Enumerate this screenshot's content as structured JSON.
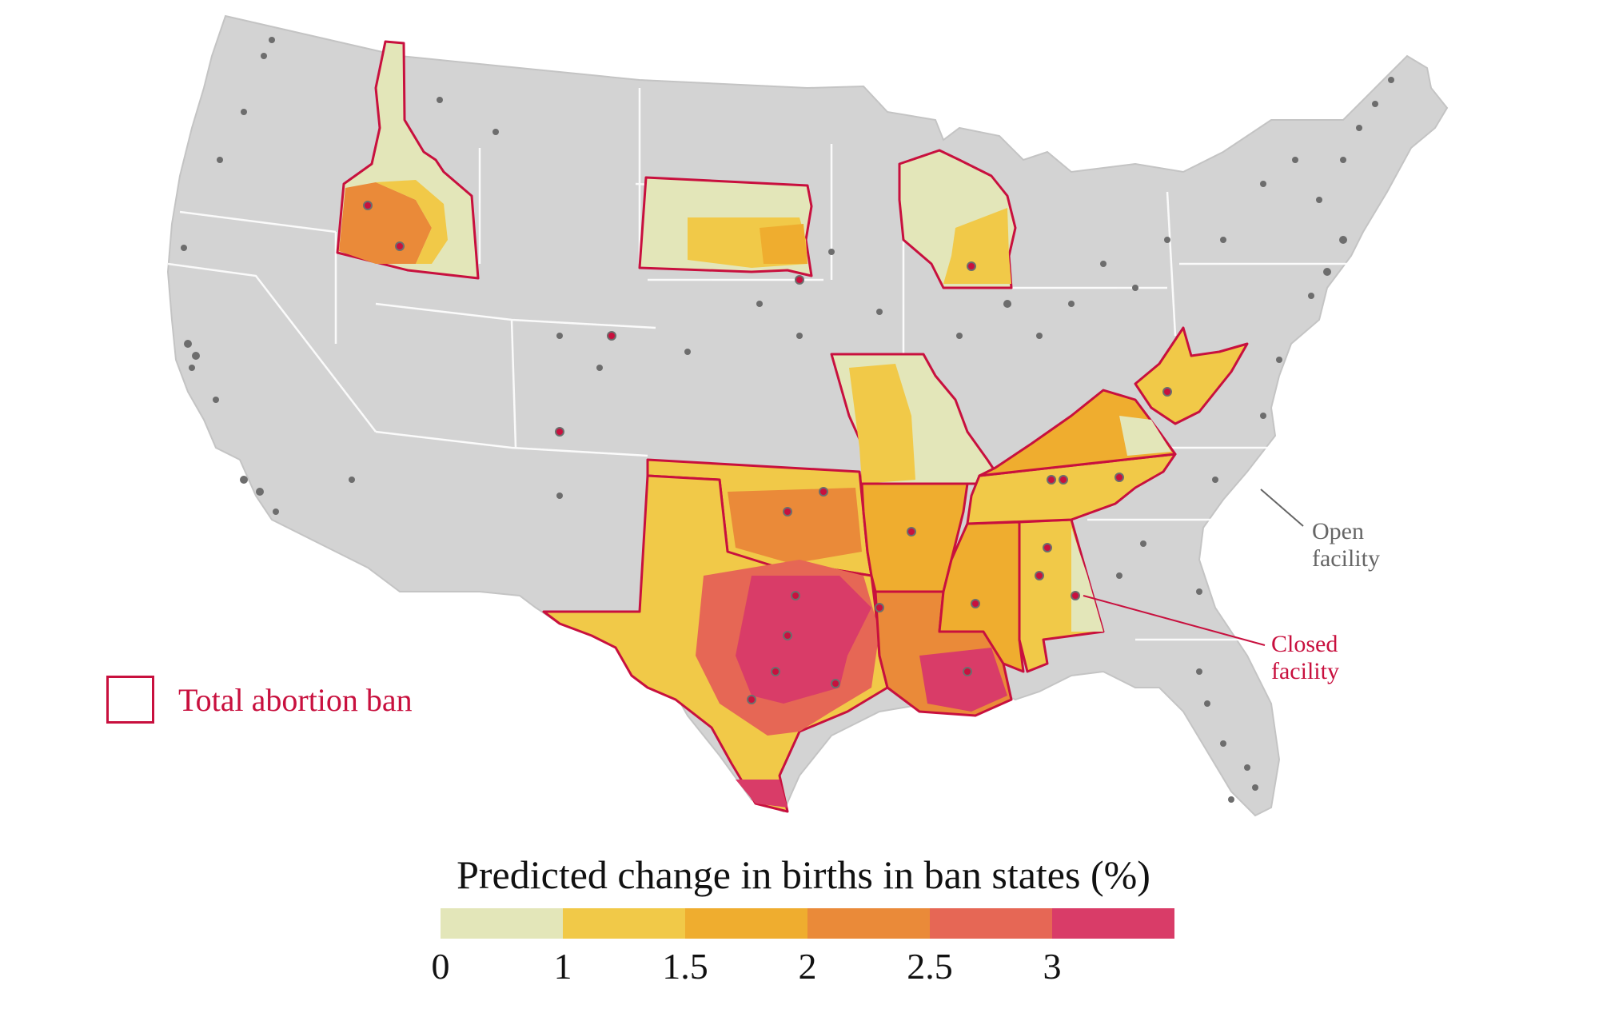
{
  "legend": {
    "ban_label": "Total abortion ban",
    "ban_color": "#c8103e"
  },
  "annotations": {
    "open_facility": [
      "Open",
      "facility"
    ],
    "closed_facility": [
      "Closed",
      "facility"
    ],
    "open_color": "#666666",
    "closed_color": "#c8103e"
  },
  "color_scale": {
    "title": "Predicted change in births in ban states (%)",
    "ticks": [
      "0",
      "1",
      "1.5",
      "2",
      "2.5",
      "3"
    ],
    "bins": [
      {
        "from": 0,
        "to": 1,
        "color": "#e3e6b9"
      },
      {
        "from": 1,
        "to": 1.5,
        "color": "#f1c948"
      },
      {
        "from": 1.5,
        "to": 2,
        "color": "#efad2f"
      },
      {
        "from": 2,
        "to": 2.5,
        "color": "#ea8a39"
      },
      {
        "from": 2.5,
        "to": 3,
        "color": "#e66755"
      },
      {
        "from": 3,
        "to": null,
        "color": "#d93c68"
      }
    ]
  },
  "map": {
    "base_color": "#d3d3d3",
    "border_color": "#ffffff",
    "open_facility_color": "#6d6d6d",
    "closed_facility_color": "#c8103e",
    "ban_states": [
      "Idaho",
      "South Dakota",
      "Wisconsin",
      "Missouri",
      "Oklahoma",
      "Texas",
      "Arkansas",
      "Louisiana",
      "Mississippi",
      "Alabama",
      "Tennessee",
      "Kentucky",
      "West Virginia"
    ]
  }
}
